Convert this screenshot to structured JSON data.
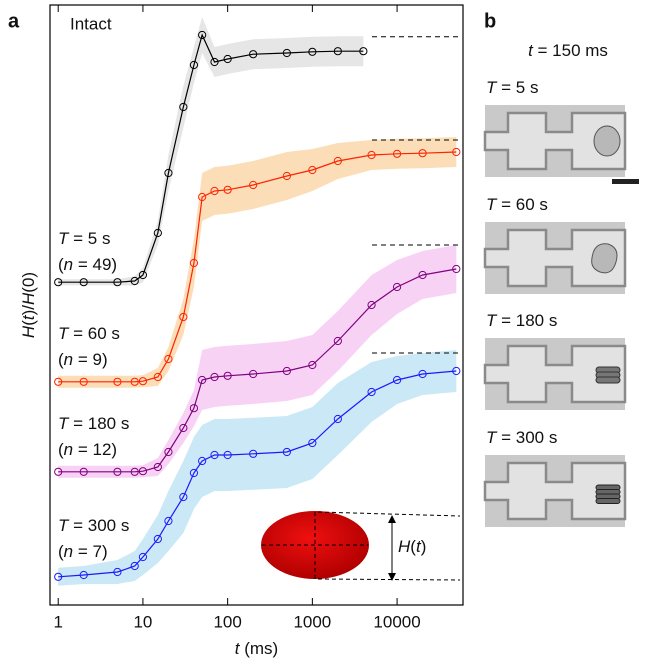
{
  "chart_data": {
    "type": "line",
    "panel_label": "a",
    "annotation": "Intact",
    "xlabel": "t (ms)",
    "ylabel": "H(t)/H(0)",
    "inset_label": "H(t)",
    "log_x": true,
    "xlim": [
      0.8,
      60000
    ],
    "ylim": [
      0,
      100
    ],
    "xticks": [
      1,
      10,
      100,
      1000,
      10000
    ],
    "series": [
      {
        "name": "T = 5 s",
        "count": "(n = 49)",
        "color": "#000000",
        "band_color": "#e2e2e2",
        "reference": 94.7,
        "x": [
          1,
          2,
          5,
          8,
          10,
          15,
          20,
          30,
          40,
          50,
          70,
          100,
          200,
          500,
          1000,
          2000,
          4000
        ],
        "values": [
          53.8,
          53.8,
          53.8,
          54,
          55,
          62,
          72,
          83,
          90,
          95,
          90.5,
          91,
          91.8,
          92,
          92.2,
          92.3,
          92.3
        ],
        "band": [
          0.5,
          0.5,
          0.5,
          0.8,
          1.2,
          2,
          3,
          3.5,
          3,
          3,
          2.5,
          2.5,
          2.5,
          2.5,
          2.5,
          2.5,
          2.5
        ]
      },
      {
        "name": "T = 60 s",
        "count": "(n = 9)",
        "color": "#ff2200",
        "band_color": "#fad8aa",
        "reference": 77.5,
        "x": [
          1,
          2,
          5,
          8,
          10,
          15,
          20,
          30,
          40,
          50,
          70,
          100,
          200,
          500,
          1000,
          2000,
          5000,
          10000,
          20000,
          50000
        ],
        "values": [
          37.2,
          37.2,
          37.2,
          37.2,
          37.3,
          38,
          41,
          48,
          57,
          68,
          69,
          69.2,
          70,
          71.5,
          72.5,
          74,
          75,
          75.2,
          75.3,
          75.5
        ],
        "band": [
          1,
          1,
          1,
          1,
          1,
          1.5,
          2,
          3,
          4,
          4,
          4,
          4,
          4,
          4,
          3.5,
          3,
          2.5,
          2.5,
          2.5,
          2.5
        ]
      },
      {
        "name": "T = 180 s",
        "count": "(n = 12)",
        "color": "#800080",
        "band_color": "#f7caf3",
        "reference": 60,
        "x": [
          1,
          2,
          5,
          8,
          10,
          15,
          20,
          30,
          40,
          50,
          70,
          100,
          200,
          500,
          1000,
          2000,
          5000,
          10000,
          20000,
          50000
        ],
        "values": [
          22.2,
          22.2,
          22.2,
          22.2,
          22.3,
          23,
          25.5,
          29.5,
          32.8,
          37.5,
          38,
          38.2,
          38.5,
          39,
          40,
          44,
          50,
          53,
          55,
          56
        ],
        "band": [
          1,
          1,
          1,
          1,
          1,
          1.5,
          2,
          2.5,
          3,
          5,
          5,
          5,
          5,
          5,
          5,
          5,
          5,
          4.5,
          4,
          4
        ]
      },
      {
        "name": "T = 300 s",
        "count": "(n = 7)",
        "color": "#1a1aff",
        "band_color": "#c2e4f6",
        "reference": 42,
        "x": [
          1,
          2,
          5,
          8,
          10,
          15,
          20,
          30,
          40,
          50,
          70,
          100,
          200,
          500,
          1000,
          2000,
          5000,
          10000,
          20000,
          50000
        ],
        "values": [
          4.7,
          5,
          5.5,
          6.5,
          8,
          11,
          14,
          18,
          22,
          24,
          25,
          25,
          25.2,
          25.5,
          27,
          31,
          35.5,
          37.5,
          38.5,
          39
        ],
        "band": [
          1.5,
          1.5,
          2,
          2.5,
          3,
          4,
          5,
          6,
          6,
          6,
          6,
          6,
          6,
          6,
          6,
          6,
          5,
          4,
          3.5,
          3.5
        ]
      }
    ]
  },
  "panel_b": {
    "label": "b",
    "time": "t = 150 ms",
    "images": [
      "T = 5 s",
      "T = 60 s",
      "T = 180 s",
      "T = 300 s"
    ]
  }
}
